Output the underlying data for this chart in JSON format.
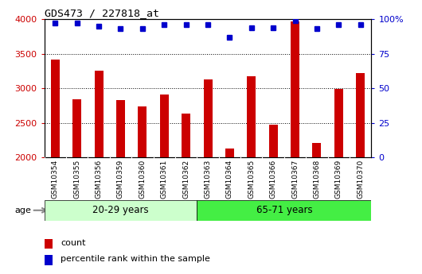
{
  "title": "GDS473 / 227818_at",
  "categories": [
    "GSM10354",
    "GSM10355",
    "GSM10356",
    "GSM10359",
    "GSM10360",
    "GSM10361",
    "GSM10362",
    "GSM10363",
    "GSM10364",
    "GSM10365",
    "GSM10366",
    "GSM10367",
    "GSM10368",
    "GSM10369",
    "GSM10370"
  ],
  "counts": [
    3420,
    2845,
    3255,
    2830,
    2740,
    2910,
    2635,
    3130,
    2130,
    3175,
    2470,
    3970,
    2215,
    2990,
    3220
  ],
  "percentile_ranks": [
    97,
    97,
    95,
    93,
    93,
    96,
    96,
    96,
    87,
    94,
    94,
    99,
    93,
    96,
    96
  ],
  "group1_label": "20-29 years",
  "group2_label": "65-71 years",
  "group1_count": 7,
  "group2_count": 8,
  "bar_color": "#cc0000",
  "dot_color": "#0000cc",
  "bar_bottom": 2000,
  "ylim_left": [
    2000,
    4000
  ],
  "ylim_right": [
    0,
    100
  ],
  "yticks_left": [
    2000,
    2500,
    3000,
    3500,
    4000
  ],
  "yticks_right": [
    0,
    25,
    50,
    75,
    100
  ],
  "grid_color": "#000000",
  "bg_plot": "#ffffff",
  "tick_area_bg": "#d0d0d0",
  "group1_bg": "#ccffcc",
  "group2_bg": "#44ee44",
  "legend_count_label": "count",
  "legend_percentile_label": "percentile rank within the sample",
  "left_label_color": "#cc0000",
  "right_label_color": "#0000cc"
}
